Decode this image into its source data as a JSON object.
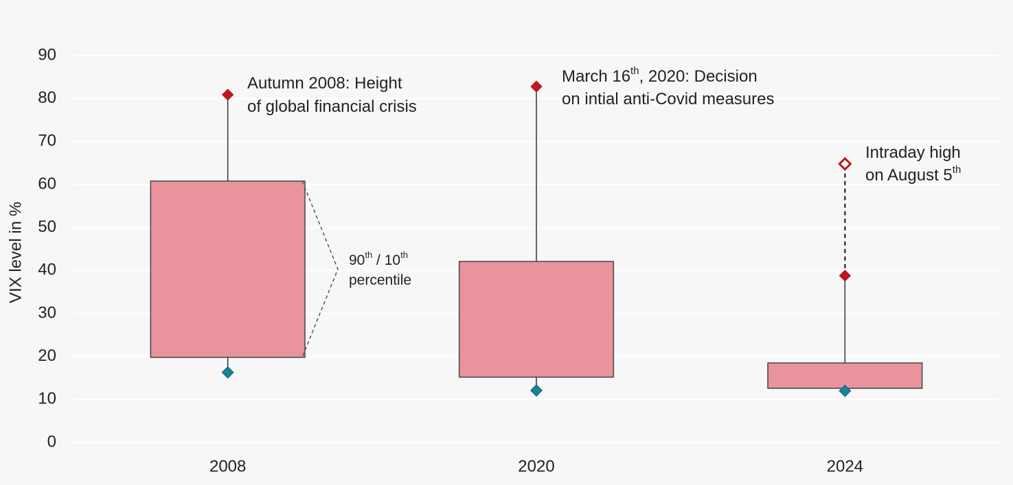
{
  "chart_data": {
    "type": "range-box",
    "y_label": "VIX level in %",
    "categories": [
      "2008",
      "2020",
      "2024"
    ],
    "p90": [
      60.8,
      42.1,
      18.5
    ],
    "p10": [
      19.8,
      15.2,
      12.6
    ],
    "max": [
      80.9,
      82.8,
      38.8
    ],
    "min": [
      16.3,
      12.1,
      12.0
    ],
    "intraday_high": [
      null,
      null,
      64.8
    ],
    "box_color": "#e9939c",
    "max_color": "#c0161f",
    "min_color": "#138a8a",
    "ylim": [
      0,
      90
    ],
    "yticks": [
      0,
      10,
      20,
      30,
      40,
      50,
      60,
      70,
      80,
      90
    ],
    "grid": true,
    "annotations": [
      {
        "lines": [
          [
            {
              "t": "Autumn 2008: Height"
            }
          ],
          [
            {
              "t": "of global financial crisis"
            }
          ]
        ]
      },
      {
        "lines": [
          [
            {
              "t": "March 16"
            },
            {
              "t": "th",
              "sup": true
            },
            {
              "t": ", 2020: Decision"
            }
          ],
          [
            {
              "t": "on intial anti-Covid measures"
            }
          ]
        ]
      },
      {
        "lines": [
          [
            {
              "t": "Intraday high"
            }
          ],
          [
            {
              "t": "on August 5"
            },
            {
              "t": "th",
              "sup": true
            }
          ]
        ]
      },
      {
        "lines": [
          [
            {
              "t": "90"
            },
            {
              "t": "th",
              "sup": true
            },
            {
              "t": " / 10"
            },
            {
              "t": "th",
              "sup": true
            }
          ],
          [
            {
              "t": "percentile"
            }
          ]
        ]
      }
    ]
  }
}
